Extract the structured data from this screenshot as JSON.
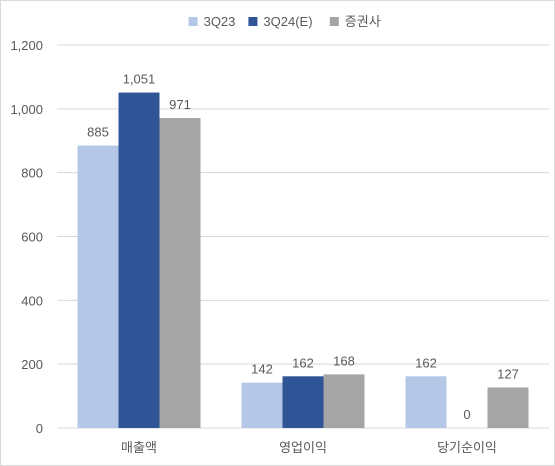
{
  "chart_data": {
    "type": "bar",
    "categories": [
      "매출액",
      "영업이익",
      "당기순이익"
    ],
    "series": [
      {
        "name": "3Q23",
        "values": [
          885,
          142,
          162
        ],
        "color": "#b4c7e7"
      },
      {
        "name": "3Q24(E)",
        "values": [
          1051,
          162,
          0
        ],
        "color": "#2f5597"
      },
      {
        "name": "증권사",
        "values": [
          971,
          168,
          127
        ],
        "color": "#a5a5a5"
      }
    ],
    "data_labels": [
      [
        "885",
        "1,051",
        "971"
      ],
      [
        "142",
        "162",
        "168"
      ],
      [
        "162",
        "0",
        "127"
      ]
    ],
    "ylim": [
      0,
      1200
    ],
    "yticks": [
      0,
      200,
      400,
      600,
      800,
      1000,
      1200
    ],
    "ytick_labels": [
      "0",
      "200",
      "400",
      "600",
      "800",
      "1,000",
      "1,200"
    ],
    "grid": true,
    "legend_position": "top-center",
    "title": "",
    "xlabel": "",
    "ylabel": ""
  }
}
